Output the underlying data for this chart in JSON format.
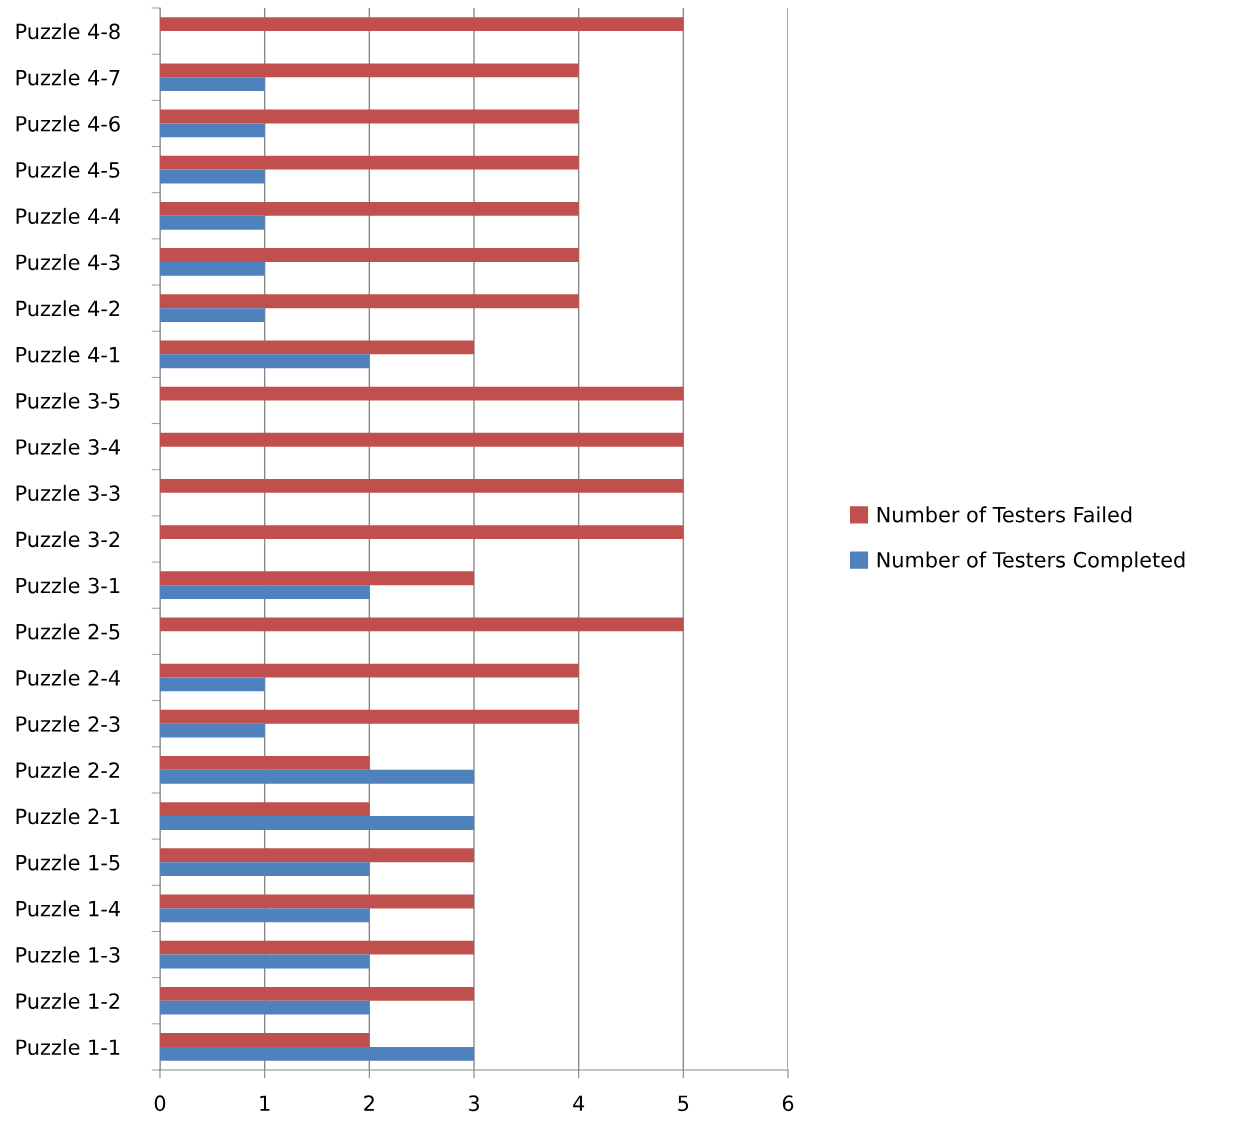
{
  "chart_data": {
    "type": "bar",
    "orientation": "horizontal",
    "categories": [
      "Puzzle 4-8",
      "Puzzle 4-7",
      "Puzzle 4-6",
      "Puzzle 4-5",
      "Puzzle 4-4",
      "Puzzle 4-3",
      "Puzzle 4-2",
      "Puzzle 4-1",
      "Puzzle 3-5",
      "Puzzle 3-4",
      "Puzzle 3-3",
      "Puzzle 3-2",
      "Puzzle 3-1",
      "Puzzle 2-5",
      "Puzzle 2-4",
      "Puzzle 2-3",
      "Puzzle 2-2",
      "Puzzle 2-1",
      "Puzzle 1-5",
      "Puzzle 1-4",
      "Puzzle 1-3",
      "Puzzle 1-2",
      "Puzzle 1-1"
    ],
    "series": [
      {
        "name": "Number of Testers Failed",
        "color": "#c0504d",
        "values": [
          5,
          4,
          4,
          4,
          4,
          4,
          4,
          3,
          5,
          5,
          5,
          5,
          3,
          5,
          4,
          4,
          2,
          2,
          3,
          3,
          3,
          3,
          2
        ]
      },
      {
        "name": "Number of Testers Completed",
        "color": "#4f81bd",
        "values": [
          0,
          1,
          1,
          1,
          1,
          1,
          1,
          2,
          0,
          0,
          0,
          0,
          2,
          0,
          1,
          1,
          3,
          3,
          2,
          2,
          2,
          2,
          3
        ]
      }
    ],
    "xlim": [
      0,
      6
    ],
    "xticks": [
      0,
      1,
      2,
      3,
      4,
      5,
      6
    ],
    "grid": "x",
    "legend": "right"
  }
}
